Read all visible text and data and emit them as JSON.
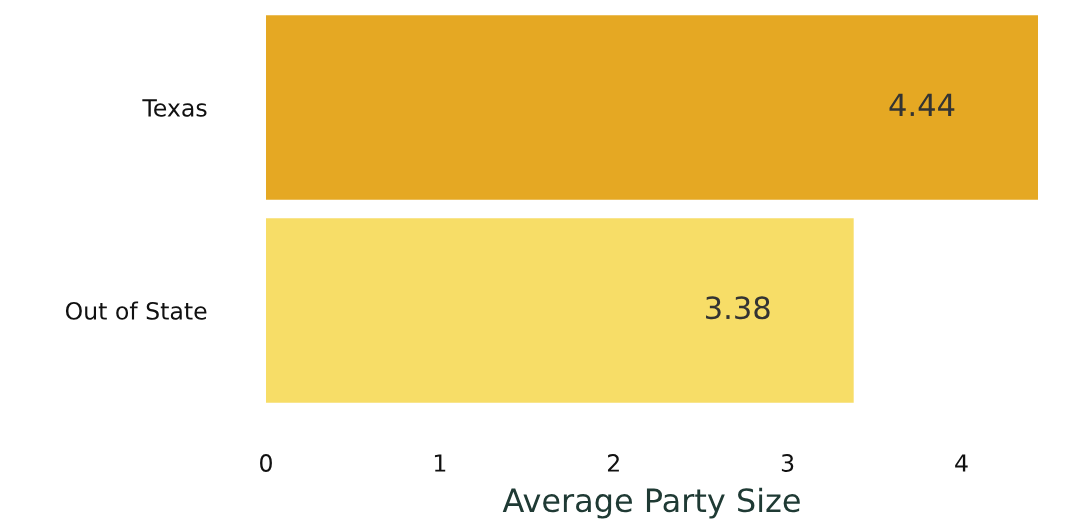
{
  "chart_data": {
    "type": "bar",
    "orientation": "horizontal",
    "categories": [
      "Texas",
      "Out of State"
    ],
    "values": [
      4.44,
      3.38
    ],
    "colors": [
      "#e5a823",
      "#f7dd67"
    ],
    "xlabel": "Average Party Size",
    "xlim": [
      0,
      4.44
    ],
    "xticks": [
      0,
      1,
      2,
      3,
      4
    ],
    "data_labels": true,
    "grid": false,
    "legend": false
  }
}
